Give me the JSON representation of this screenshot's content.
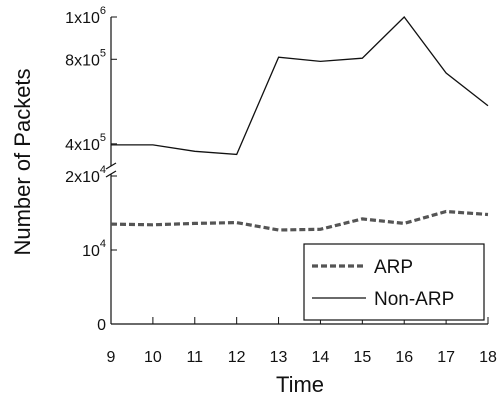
{
  "chart_data": {
    "type": "line",
    "xlabel": "Time",
    "ylabel": "Number of Packets",
    "x": [
      9,
      10,
      11,
      12,
      13,
      14,
      15,
      16,
      17,
      18
    ],
    "xlim": [
      9,
      18
    ],
    "upper_panel": {
      "ylim": [
        300000,
        1000000
      ],
      "yticks": [
        {
          "value": 400000,
          "base": "4x10",
          "exp": "5"
        },
        {
          "value": 800000,
          "base": "8x10",
          "exp": "5"
        },
        {
          "value": 1000000,
          "base": "1x10",
          "exp": "6"
        }
      ]
    },
    "lower_panel": {
      "ylim": [
        0,
        20000
      ],
      "yticks": [
        {
          "value": 0,
          "base": "0",
          "exp": ""
        },
        {
          "value": 10000,
          "base": "10",
          "exp": "4"
        },
        {
          "value": 20000,
          "base": "2x10",
          "exp": "4"
        }
      ]
    },
    "series": [
      {
        "name": "ARP",
        "style": "dashed",
        "color": "#555555",
        "panel": "lower",
        "values": [
          13500,
          13400,
          13600,
          13700,
          12700,
          12800,
          14200,
          13600,
          15200,
          14800
        ]
      },
      {
        "name": "Non-ARP",
        "style": "solid",
        "color": "#111111",
        "panel": "upper",
        "values": [
          395000,
          395000,
          365000,
          350000,
          810000,
          790000,
          805000,
          1000000,
          735000,
          580000
        ]
      }
    ],
    "legend_position": "bottom-right",
    "grid": false,
    "axis_break": true
  }
}
